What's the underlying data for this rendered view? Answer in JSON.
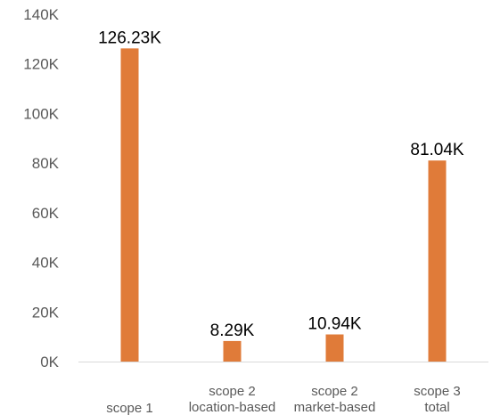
{
  "chart_data": {
    "type": "bar",
    "title": "",
    "xlabel": "",
    "ylabel": "",
    "categories": [
      [
        "scope 1"
      ],
      [
        "scope 2",
        "location-based"
      ],
      [
        "scope 2",
        "market-based"
      ],
      [
        "scope 3",
        "total"
      ]
    ],
    "values": [
      126.23,
      8.29,
      10.94,
      81.04
    ],
    "data_labels": [
      "126.23K",
      "8.29K",
      "10.94K",
      "81.04K"
    ],
    "ylim": [
      0,
      140
    ],
    "yticks": [
      0,
      20,
      40,
      60,
      80,
      100,
      120,
      140
    ],
    "ytick_labels": [
      "0K",
      "20K",
      "40K",
      "60K",
      "80K",
      "100K",
      "120K",
      "140K"
    ],
    "grid": false,
    "legend": "none",
    "colors": {
      "bar": "#E07B39",
      "axis": "#D9D9D9",
      "tick_text": "#595959",
      "data_text": "#000000"
    }
  }
}
